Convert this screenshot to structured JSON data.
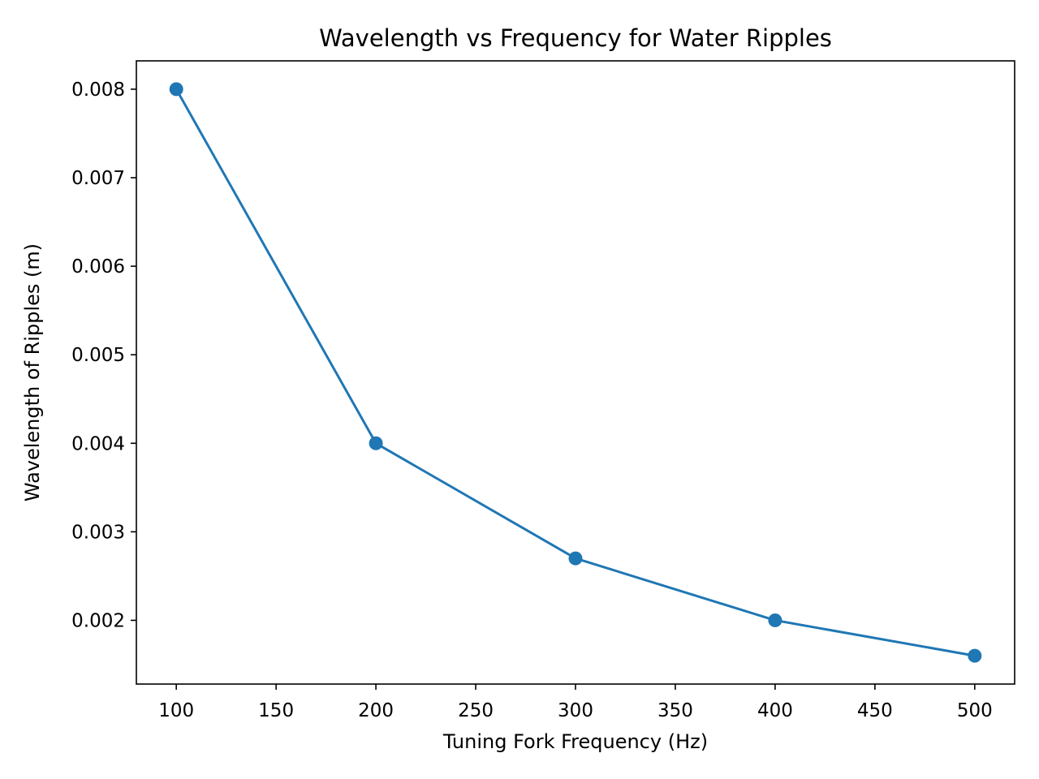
{
  "chart_data": {
    "type": "line",
    "title": "Wavelength vs Frequency for Water Ripples",
    "xlabel": "Tuning Fork Frequency (Hz)",
    "ylabel": "Wavelength of Ripples (m)",
    "x": [
      100,
      200,
      300,
      400,
      500
    ],
    "series": [
      {
        "values": [
          0.008,
          0.004,
          0.0027,
          0.002,
          0.0016
        ],
        "color": "#1f77b4",
        "marker": "circle"
      }
    ],
    "xlim": [
      80,
      520
    ],
    "ylim": [
      0.00128,
      0.00832
    ],
    "xticks": [
      100,
      150,
      200,
      250,
      300,
      350,
      400,
      450,
      500
    ],
    "xtick_labels": [
      "100",
      "150",
      "200",
      "250",
      "300",
      "350",
      "400",
      "450",
      "500"
    ],
    "yticks": [
      0.002,
      0.003,
      0.004,
      0.005,
      0.006,
      0.007,
      0.008
    ],
    "ytick_labels": [
      "0.002",
      "0.003",
      "0.004",
      "0.005",
      "0.006",
      "0.007",
      "0.008"
    ],
    "grid": false,
    "legend": "none"
  }
}
